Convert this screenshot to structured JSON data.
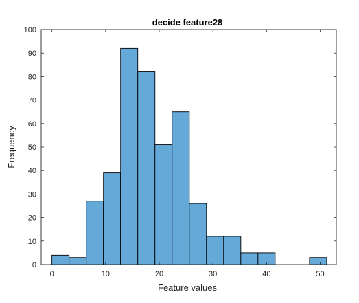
{
  "chart_data": {
    "type": "bar",
    "title": "decide feature28",
    "xlabel": "Feature values",
    "ylabel": "Frequency",
    "xlim": [
      -2,
      53
    ],
    "ylim": [
      0,
      100
    ],
    "xticks": [
      0,
      10,
      20,
      30,
      40,
      50
    ],
    "yticks": [
      0,
      10,
      20,
      30,
      40,
      50,
      60,
      70,
      80,
      90,
      100
    ],
    "bin_edges": [
      0,
      3.2,
      6.4,
      9.6,
      12.8,
      16,
      19.2,
      22.4,
      25.6,
      28.8,
      32,
      35.2,
      38.4,
      41.6,
      44.8,
      48,
      51.2
    ],
    "values": [
      4,
      3,
      27,
      39,
      92,
      82,
      51,
      65,
      26,
      12,
      12,
      5,
      5,
      0,
      0,
      3
    ],
    "bar_color": "#65a9d8",
    "grid": false
  }
}
